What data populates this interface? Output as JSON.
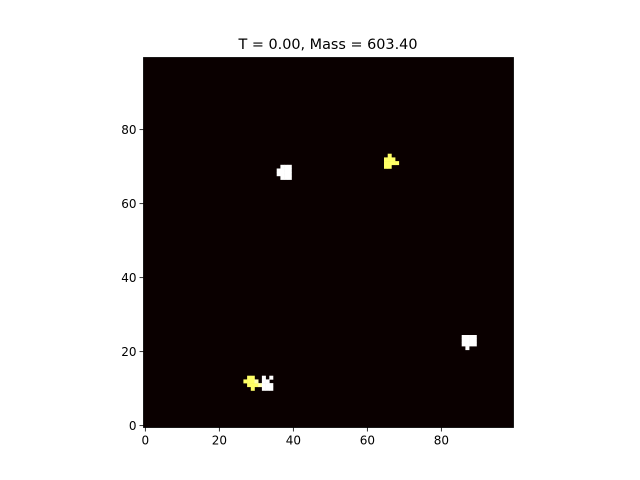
{
  "chart_data": {
    "type": "heatmap",
    "title": "T = 0.00, Mass = 603.40",
    "xlabel": "",
    "ylabel": "",
    "xlim": [
      -0.5,
      99.5
    ],
    "ylim": [
      99.5,
      -0.5
    ],
    "x_ticks": [
      0,
      20,
      40,
      60,
      80
    ],
    "y_ticks": [
      0,
      20,
      40,
      60,
      80
    ],
    "grid": false,
    "colormap": "hot",
    "colors": {
      "background": "#0a0000",
      "white": "#ffffff",
      "yellow": "#ffff66",
      "pale_yellow": "#ffffb0"
    },
    "cells": [
      {
        "x": 27,
        "y": 13,
        "c": "yellow"
      },
      {
        "x": 28,
        "y": 12,
        "c": "yellow"
      },
      {
        "x": 28,
        "y": 13,
        "c": "yellow"
      },
      {
        "x": 28,
        "y": 14,
        "c": "yellow"
      },
      {
        "x": 29,
        "y": 12,
        "c": "yellow"
      },
      {
        "x": 29,
        "y": 13,
        "c": "yellow"
      },
      {
        "x": 29,
        "y": 14,
        "c": "yellow"
      },
      {
        "x": 29,
        "y": 11,
        "c": "yellow"
      },
      {
        "x": 30,
        "y": 12,
        "c": "yellow"
      },
      {
        "x": 30,
        "y": 13,
        "c": "pale_yellow"
      },
      {
        "x": 31,
        "y": 12,
        "c": "pale_yellow"
      },
      {
        "x": 32,
        "y": 11,
        "c": "white"
      },
      {
        "x": 32,
        "y": 12,
        "c": "white"
      },
      {
        "x": 32,
        "y": 13,
        "c": "white"
      },
      {
        "x": 33,
        "y": 11,
        "c": "white"
      },
      {
        "x": 33,
        "y": 12,
        "c": "white"
      },
      {
        "x": 33,
        "y": 13,
        "c": "white"
      },
      {
        "x": 34,
        "y": 11,
        "c": "white"
      },
      {
        "x": 34,
        "y": 12,
        "c": "white"
      },
      {
        "x": 32,
        "y": 14,
        "c": "white"
      },
      {
        "x": 34,
        "y": 14,
        "c": "white"
      },
      {
        "x": 87,
        "y": 22,
        "c": "white"
      },
      {
        "x": 86,
        "y": 23,
        "c": "white"
      },
      {
        "x": 87,
        "y": 23,
        "c": "white"
      },
      {
        "x": 88,
        "y": 23,
        "c": "white"
      },
      {
        "x": 89,
        "y": 23,
        "c": "white"
      },
      {
        "x": 86,
        "y": 24,
        "c": "white"
      },
      {
        "x": 87,
        "y": 24,
        "c": "white"
      },
      {
        "x": 88,
        "y": 24,
        "c": "white"
      },
      {
        "x": 89,
        "y": 24,
        "c": "white"
      },
      {
        "x": 86,
        "y": 25,
        "c": "white"
      },
      {
        "x": 87,
        "y": 25,
        "c": "white"
      },
      {
        "x": 88,
        "y": 25,
        "c": "white"
      },
      {
        "x": 89,
        "y": 25,
        "c": "white"
      },
      {
        "x": 37,
        "y": 68,
        "c": "white"
      },
      {
        "x": 38,
        "y": 68,
        "c": "white"
      },
      {
        "x": 39,
        "y": 68,
        "c": "white"
      },
      {
        "x": 36,
        "y": 69,
        "c": "white"
      },
      {
        "x": 37,
        "y": 69,
        "c": "white"
      },
      {
        "x": 38,
        "y": 69,
        "c": "white"
      },
      {
        "x": 39,
        "y": 69,
        "c": "white"
      },
      {
        "x": 36,
        "y": 70,
        "c": "white"
      },
      {
        "x": 37,
        "y": 70,
        "c": "white"
      },
      {
        "x": 38,
        "y": 70,
        "c": "white"
      },
      {
        "x": 39,
        "y": 70,
        "c": "white"
      },
      {
        "x": 37,
        "y": 71,
        "c": "white"
      },
      {
        "x": 38,
        "y": 71,
        "c": "white"
      },
      {
        "x": 39,
        "y": 71,
        "c": "white"
      },
      {
        "x": 65,
        "y": 71,
        "c": "yellow"
      },
      {
        "x": 66,
        "y": 71,
        "c": "yellow"
      },
      {
        "x": 65,
        "y": 72,
        "c": "yellow"
      },
      {
        "x": 66,
        "y": 72,
        "c": "yellow"
      },
      {
        "x": 67,
        "y": 72,
        "c": "yellow"
      },
      {
        "x": 68,
        "y": 72,
        "c": "yellow"
      },
      {
        "x": 65,
        "y": 73,
        "c": "yellow"
      },
      {
        "x": 66,
        "y": 73,
        "c": "yellow"
      },
      {
        "x": 67,
        "y": 73,
        "c": "yellow"
      },
      {
        "x": 66,
        "y": 74,
        "c": "yellow"
      }
    ]
  }
}
